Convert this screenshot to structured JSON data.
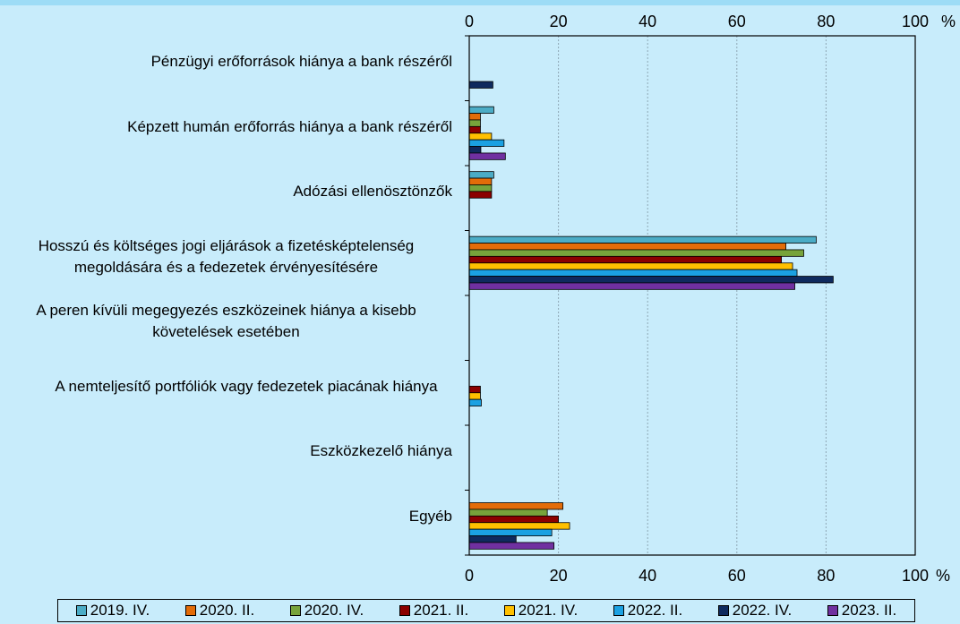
{
  "chart_data": {
    "type": "bar",
    "orientation": "horizontal",
    "unit": "%",
    "xlim": [
      0,
      100
    ],
    "ticks": [
      0,
      20,
      40,
      60,
      80,
      100
    ],
    "grid": true,
    "legend_position": "bottom",
    "categories": [
      "Pénzügyi erőforrások hiánya a bank részéről",
      "Képzett humán erőforrás hiánya a bank részéről",
      "Adózási ellenösztönzők",
      "Hosszú és költséges jogi eljárások a fizetésképtelenség megoldására és a fedezetek érvényesítésére",
      "A peren kívüli megegyezés eszközeinek hiánya a kisebb követelések esetében",
      "A nemteljesítő portfóliók vagy fedezetek piacának hiánya",
      "Eszközkezelő hiánya",
      "Egyéb"
    ],
    "series": [
      {
        "name": "2019. IV.",
        "color": "#4bacc6",
        "values": [
          0,
          5.5,
          5.5,
          77.8,
          0,
          0,
          0,
          0
        ]
      },
      {
        "name": "2020. II.",
        "color": "#e36c09",
        "values": [
          0,
          2.5,
          5.0,
          71.0,
          0,
          0,
          0,
          21.0
        ]
      },
      {
        "name": "2020. IV.",
        "color": "#77a33b",
        "values": [
          0,
          2.5,
          5.0,
          75.0,
          0,
          0,
          0,
          17.5
        ]
      },
      {
        "name": "2021. II.",
        "color": "#8b0000",
        "values": [
          0,
          2.5,
          5.0,
          70.0,
          0,
          2.5,
          0,
          20.0
        ]
      },
      {
        "name": "2021. IV.",
        "color": "#ffc000",
        "values": [
          0,
          5.0,
          0,
          72.5,
          0,
          2.5,
          0,
          22.5
        ]
      },
      {
        "name": "2022. II.",
        "color": "#1ba1e2",
        "values": [
          0,
          7.8,
          0,
          73.5,
          0,
          2.7,
          0,
          18.5
        ]
      },
      {
        "name": "2022. IV.",
        "color": "#0f2a5e",
        "values": [
          5.3,
          2.6,
          0,
          81.6,
          0,
          0,
          0,
          10.5
        ]
      },
      {
        "name": "2023. II.",
        "color": "#7030a0",
        "values": [
          0,
          8.1,
          0,
          73.0,
          0,
          0,
          0,
          19.0
        ]
      }
    ]
  }
}
